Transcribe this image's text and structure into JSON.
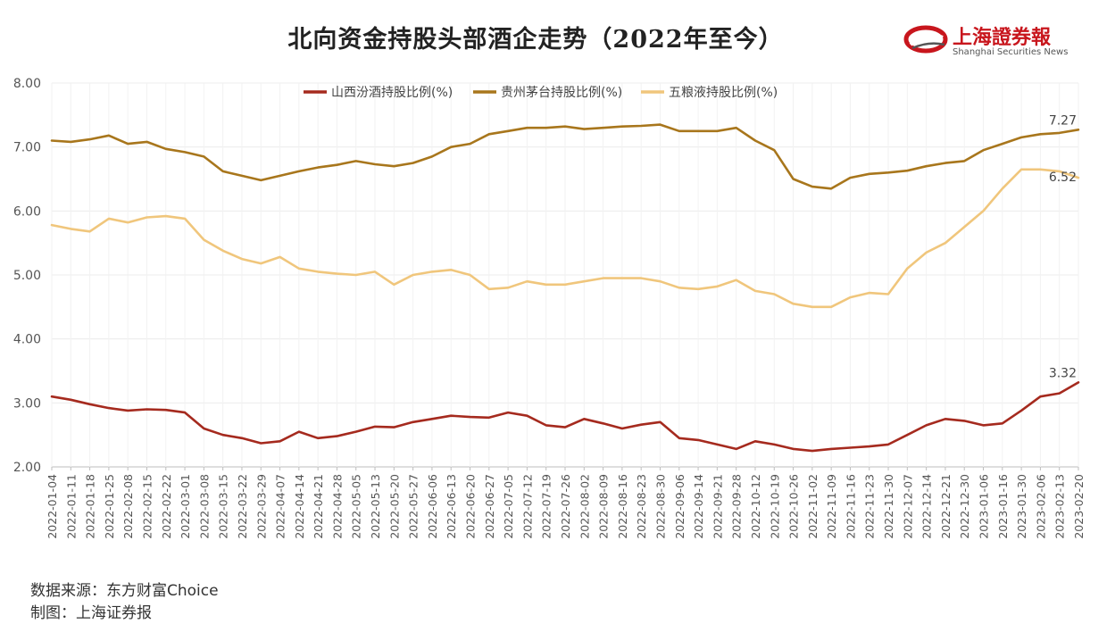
{
  "chart_data": {
    "type": "line",
    "title": "北向资金持股头部酒企走势（2022年至今）",
    "ylim": [
      2.0,
      8.0
    ],
    "yticks": [
      "2.00",
      "3.00",
      "4.00",
      "5.00",
      "6.00",
      "7.00",
      "8.00"
    ],
    "x_labels": [
      "2022-01-04",
      "2022-01-11",
      "2022-01-18",
      "2022-01-25",
      "2022-02-08",
      "2022-02-15",
      "2022-02-22",
      "2022-03-01",
      "2022-03-08",
      "2022-03-15",
      "2022-03-22",
      "2022-03-29",
      "2022-04-07",
      "2022-04-14",
      "2022-04-21",
      "2022-04-28",
      "2022-05-05",
      "2022-05-13",
      "2022-05-20",
      "2022-05-27",
      "2022-06-06",
      "2022-06-13",
      "2022-06-20",
      "2022-06-27",
      "2022-07-05",
      "2022-07-12",
      "2022-07-19",
      "2022-07-26",
      "2022-08-02",
      "2022-08-09",
      "2022-08-16",
      "2022-08-23",
      "2022-08-30",
      "2022-09-06",
      "2022-09-14",
      "2022-09-21",
      "2022-09-28",
      "2022-10-12",
      "2022-10-19",
      "2022-10-26",
      "2022-11-02",
      "2022-11-09",
      "2022-11-16",
      "2022-11-23",
      "2022-11-30",
      "2022-12-07",
      "2022-12-14",
      "2022-12-21",
      "2022-12-30",
      "2023-01-06",
      "2023-01-16",
      "2023-01-30",
      "2023-02-06",
      "2023-02-13",
      "2023-02-20"
    ],
    "series": [
      {
        "name": "山西汾酒持股比例(%)",
        "color": "#a52a1e",
        "end_label": "3.32",
        "values": [
          3.1,
          3.05,
          2.98,
          2.92,
          2.88,
          2.9,
          2.89,
          2.85,
          2.6,
          2.5,
          2.45,
          2.37,
          2.4,
          2.55,
          2.45,
          2.48,
          2.55,
          2.63,
          2.62,
          2.7,
          2.75,
          2.8,
          2.78,
          2.77,
          2.85,
          2.8,
          2.65,
          2.62,
          2.75,
          2.68,
          2.6,
          2.66,
          2.7,
          2.45,
          2.42,
          2.35,
          2.28,
          2.4,
          2.35,
          2.28,
          2.25,
          2.28,
          2.3,
          2.32,
          2.35,
          2.5,
          2.65,
          2.75,
          2.72,
          2.65,
          2.68,
          2.88,
          3.1,
          3.15,
          3.32
        ]
      },
      {
        "name": "贵州茅台持股比例(%)",
        "color": "#a8761c",
        "end_label": "7.27",
        "values": [
          7.1,
          7.08,
          7.12,
          7.18,
          7.05,
          7.08,
          6.97,
          6.92,
          6.85,
          6.62,
          6.55,
          6.48,
          6.55,
          6.62,
          6.68,
          6.72,
          6.78,
          6.73,
          6.7,
          6.75,
          6.85,
          7.0,
          7.05,
          7.2,
          7.25,
          7.3,
          7.3,
          7.32,
          7.28,
          7.3,
          7.32,
          7.33,
          7.35,
          7.25,
          7.25,
          7.25,
          7.3,
          7.1,
          6.95,
          6.5,
          6.38,
          6.35,
          6.52,
          6.58,
          6.6,
          6.63,
          6.7,
          6.75,
          6.78,
          6.95,
          7.05,
          7.15,
          7.2,
          7.22,
          7.27
        ]
      },
      {
        "name": "五粮液持股比例(%)",
        "color": "#f0c67c",
        "end_label": "6.52",
        "values": [
          5.78,
          5.72,
          5.68,
          5.88,
          5.82,
          5.9,
          5.92,
          5.88,
          5.55,
          5.38,
          5.25,
          5.18,
          5.28,
          5.1,
          5.05,
          5.02,
          5.0,
          5.05,
          4.85,
          5.0,
          5.05,
          5.08,
          5.0,
          4.78,
          4.8,
          4.9,
          4.85,
          4.85,
          4.9,
          4.95,
          4.95,
          4.95,
          4.9,
          4.8,
          4.78,
          4.82,
          4.92,
          4.75,
          4.7,
          4.55,
          4.5,
          4.5,
          4.65,
          4.72,
          4.7,
          5.1,
          5.35,
          5.5,
          5.75,
          6.0,
          6.35,
          6.65,
          6.65,
          6.62,
          6.52
        ]
      }
    ],
    "source": "数据来源：东方财富Choice",
    "maker": "制图：上海证券报"
  },
  "logo": {
    "name": "上海證券報",
    "subtitle": "Shanghai Securities News",
    "brand_color": "#c8161d"
  }
}
